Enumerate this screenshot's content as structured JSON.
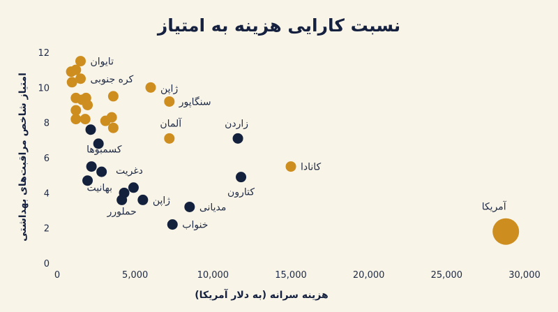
{
  "chart_data": {
    "type": "scatter",
    "title": "نسبت کارایی هزینه به امتیاز",
    "xlabel": "هزینه سرانه (به دلار آمریکا)",
    "ylabel": "امتیاز شاخص مراقبت‌های بهداشتی",
    "xlim": [
      0,
      30000
    ],
    "ylim": [
      0,
      12
    ],
    "x_ticks": [
      "0",
      "5,000",
      "10,000",
      "15,000",
      "20,000",
      "25,000",
      "30,000"
    ],
    "y_ticks": [
      "0",
      "2",
      "4",
      "6",
      "8",
      "10",
      "12"
    ],
    "grid": false,
    "colors": {
      "gold": "#cd8e1f",
      "navy": "#14213d"
    },
    "series": [
      {
        "color": "gold",
        "points": [
          {
            "x": 1500,
            "y": 11.5,
            "label": "تایوان"
          },
          {
            "x": 1200,
            "y": 11.0
          },
          {
            "x": 900,
            "y": 10.9
          },
          {
            "x": 1500,
            "y": 10.5,
            "label": "کره جنوبی"
          },
          {
            "x": 950,
            "y": 10.3
          },
          {
            "x": 1200,
            "y": 9.4
          },
          {
            "x": 1850,
            "y": 9.4
          },
          {
            "x": 1600,
            "y": 9.3
          },
          {
            "x": 1950,
            "y": 9.0
          },
          {
            "x": 1200,
            "y": 8.7
          },
          {
            "x": 3600,
            "y": 9.5
          },
          {
            "x": 3500,
            "y": 8.3
          },
          {
            "x": 3100,
            "y": 8.1
          },
          {
            "x": 1200,
            "y": 8.2
          },
          {
            "x": 1800,
            "y": 8.2
          },
          {
            "x": 3600,
            "y": 7.7
          },
          {
            "x": 6000,
            "y": 10.0,
            "label": "ژاپن"
          },
          {
            "x": 7200,
            "y": 9.2,
            "label": "سنگاپور"
          },
          {
            "x": 7200,
            "y": 7.1,
            "label": "آلمان"
          },
          {
            "x": 15000,
            "y": 5.5,
            "label": "کانادا"
          },
          {
            "x": 28800,
            "y": 1.8,
            "label": "آمریکا",
            "size": "large"
          }
        ]
      },
      {
        "color": "navy",
        "points": [
          {
            "x": 2150,
            "y": 7.6
          },
          {
            "x": 2650,
            "y": 6.8
          },
          {
            "x": 2200,
            "y": 5.5,
            "label": "کسمبوها"
          },
          {
            "x": 2850,
            "y": 5.2
          },
          {
            "x": 1950,
            "y": 4.7
          },
          {
            "x": 4900,
            "y": 4.3,
            "label": "دغریت"
          },
          {
            "x": 4300,
            "y": 4.0,
            "label": "بهانیت"
          },
          {
            "x": 4150,
            "y": 3.6,
            "label": "حملورر"
          },
          {
            "x": 5500,
            "y": 3.6,
            "label": "ژاپن"
          },
          {
            "x": 8500,
            "y": 3.2,
            "label": "مدیانی"
          },
          {
            "x": 7400,
            "y": 2.2,
            "label": "خنواب"
          },
          {
            "x": 11600,
            "y": 7.1,
            "label": "زاردن"
          },
          {
            "x": 11800,
            "y": 4.9,
            "label": "کتارون"
          }
        ]
      }
    ]
  }
}
